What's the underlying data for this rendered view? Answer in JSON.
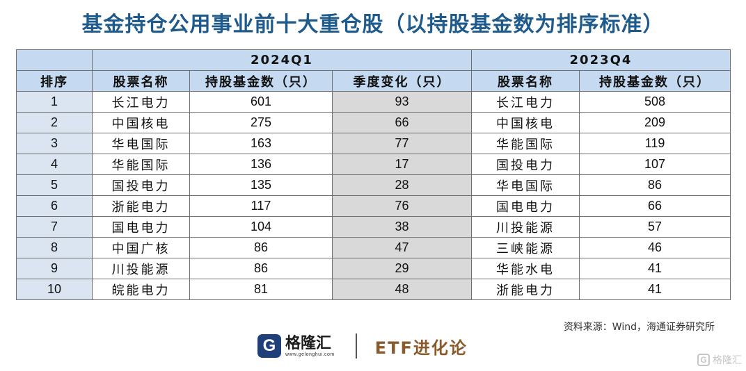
{
  "title": "基金持仓公用事业前十大重仓股（以持股基金数为排序标准）",
  "table": {
    "period_current": "2024Q1",
    "period_previous": "2023Q4",
    "headers": {
      "rank": "排序",
      "stock_name": "股票名称",
      "fund_count": "持股基金数（只）",
      "quarter_change": "季度变化（只）",
      "prev_stock_name": "股票名称",
      "prev_fund_count": "持股基金数（只）"
    },
    "rows": [
      {
        "rank": "1",
        "name": "长江电力",
        "count": "601",
        "change": "93",
        "prev_name": "长江电力",
        "prev_count": "508"
      },
      {
        "rank": "2",
        "name": "中国核电",
        "count": "275",
        "change": "66",
        "prev_name": "中国核电",
        "prev_count": "209"
      },
      {
        "rank": "3",
        "name": "华电国际",
        "count": "163",
        "change": "77",
        "prev_name": "华能国际",
        "prev_count": "119"
      },
      {
        "rank": "4",
        "name": "华能国际",
        "count": "136",
        "change": "17",
        "prev_name": "国投电力",
        "prev_count": "107"
      },
      {
        "rank": "5",
        "name": "国投电力",
        "count": "135",
        "change": "28",
        "prev_name": "华电国际",
        "prev_count": "86"
      },
      {
        "rank": "6",
        "name": "浙能电力",
        "count": "117",
        "change": "76",
        "prev_name": "国电电力",
        "prev_count": "66"
      },
      {
        "rank": "7",
        "name": "国电电力",
        "count": "104",
        "change": "38",
        "prev_name": "川投能源",
        "prev_count": "57"
      },
      {
        "rank": "8",
        "name": "中国广核",
        "count": "86",
        "change": "47",
        "prev_name": "三峡能源",
        "prev_count": "46"
      },
      {
        "rank": "9",
        "name": "川投能源",
        "count": "86",
        "change": "29",
        "prev_name": "华能水电",
        "prev_count": "41"
      },
      {
        "rank": "10",
        "name": "皖能电力",
        "count": "81",
        "change": "48",
        "prev_name": "浙能电力",
        "prev_count": "41"
      }
    ]
  },
  "source": "资料来源：Wind，海通证券研究所",
  "brand": {
    "logo_letter": "G",
    "name": "格隆汇",
    "url": "www.gelonghui.com",
    "partner": "ETF进化论"
  },
  "watermark": {
    "logo_letter": "G",
    "text": "格隆汇"
  }
}
